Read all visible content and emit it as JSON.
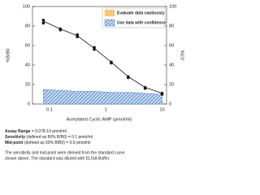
{
  "chart_data": {
    "type": "line",
    "xlabel": "Acetylated Cyclic AMP (pmol/ml)",
    "ylabel": "%B/B0",
    "y2label": "%CV",
    "xscale": "log",
    "x": [
      0.078,
      0.156,
      0.313,
      0.625,
      1.25,
      2.5,
      5,
      10
    ],
    "series": [
      {
        "style": "points",
        "color": "#111111",
        "values": [
          86,
          77,
          71,
          58,
          43,
          28,
          17,
          11
        ]
      },
      {
        "style": "points",
        "color": "#111111",
        "values": [
          83,
          76,
          69,
          56,
          42,
          27,
          16,
          10
        ]
      },
      {
        "style": "line",
        "color": "#111111",
        "values": [
          85,
          77,
          70,
          57,
          43,
          28,
          17,
          11
        ]
      },
      {
        "style": "area",
        "name": "Use data with confidence",
        "color": "#3a6fb8",
        "axis": "y2",
        "values": [
          15,
          14,
          13,
          13,
          12,
          12,
          11,
          10
        ]
      }
    ],
    "legend": [
      {
        "name": "Evaluate data cautiously",
        "color": "#f5c97a"
      },
      {
        "name": "Use data with confidence",
        "color": "#3a6fb8"
      }
    ],
    "xlim": [
      0.05,
      12
    ],
    "xticks": [
      0.1,
      1,
      10
    ],
    "ylim": [
      0,
      100
    ],
    "yticks": [
      0,
      20,
      40,
      60,
      80,
      100
    ],
    "y2lim": [
      0,
      100
    ],
    "y2ticks": [
      0,
      20,
      40,
      60,
      80,
      100
    ],
    "notes": [
      {
        "label": "Assay Range",
        "text": " = 0.078-10 pmol/ml"
      },
      {
        "label": "Sensitivity",
        "text": " (defined as 80% B/B0) = 0.1 pmol/ml"
      },
      {
        "label": "Mid-point",
        "text": " (defined as 50% B/B0) = 0.9 pmol/ml"
      }
    ],
    "footnote": [
      "The sensitivity and mid-point were derived from the standard curve",
      "shown above. The standard was diluted with ELISA Buffer."
    ]
  }
}
